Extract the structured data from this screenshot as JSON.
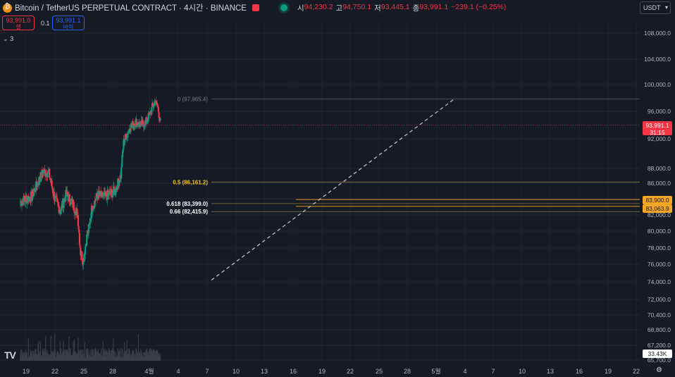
{
  "header": {
    "symbol": "Bitcoin / TetherUS PERPETUAL CONTRACT · 4시간 · BINANCE",
    "open_label": "시",
    "open": "94,230.2",
    "high_label": "고",
    "high": "94,750.1",
    "low_label": "저",
    "low": "93,445.1",
    "close_label": "종",
    "close": "93,991.1",
    "change": "−239.1 (−0.25%)",
    "currency": "USDT"
  },
  "trade": {
    "sell_price": "93,991.0",
    "sell_label": "셀",
    "spread": "0.1",
    "buy_price": "93,991.1",
    "buy_label": "바이",
    "indicators_count": "3"
  },
  "price_axis": {
    "ticks": [
      108000,
      104000,
      100000,
      96000,
      92000,
      88000,
      86000,
      84000,
      82000,
      80000,
      78000,
      76000,
      74000,
      72000,
      70400,
      68800,
      67200,
      65700
    ],
    "tick_labels": [
      "108,000.0",
      "104,000.0",
      "100,000.0",
      "96,000.0",
      "92,000.0",
      "88,000.0",
      "86,000.0",
      "84,000.0",
      "82,000.0",
      "80,000.0",
      "78,000.0",
      "76,000.0",
      "74,000.0",
      "72,000.0",
      "70,400.0",
      "68,800.0",
      "67,200.0",
      "65,700.0"
    ],
    "current_price": "93,991.1",
    "countdown": "31:15",
    "tag_83900": "83,900.0",
    "tag_83063": "83,063.9",
    "volume_tag": "33.43K"
  },
  "time_axis": {
    "labels": [
      "19",
      "22",
      "25",
      "28",
      "4월",
      "4",
      "7",
      "10",
      "13",
      "16",
      "19",
      "22",
      "25",
      "28",
      "5월",
      "4",
      "7",
      "10",
      "13",
      "16",
      "19",
      "22"
    ]
  },
  "fib": {
    "level0": "0 (97,865.4)",
    "level05": "0.5 (86,161.2)",
    "level0618": "0.618 (83,399.0)",
    "level066": "0.66 (82,415.9)"
  },
  "chart_data": {
    "type": "candlestick",
    "pair": "BTCUSDT",
    "interval": "4h",
    "ylim": [
      65700,
      110000
    ],
    "fib_levels": [
      {
        "ratio": 0,
        "price": 97865.4
      },
      {
        "ratio": 0.5,
        "price": 86161.2
      },
      {
        "ratio": 0.618,
        "price": 83399.0
      },
      {
        "ratio": 0.66,
        "price": 82415.9
      }
    ],
    "horizontal_lines": [
      83900.0,
      83063.9
    ],
    "approx_close_path": [
      {
        "date": "03-17",
        "close": 83600
      },
      {
        "date": "03-19",
        "close": 84000
      },
      {
        "date": "03-21",
        "close": 84300
      },
      {
        "date": "03-23",
        "close": 86000
      },
      {
        "date": "03-25",
        "close": 87600
      },
      {
        "date": "03-27",
        "close": 87300
      },
      {
        "date": "03-29",
        "close": 84000
      },
      {
        "date": "03-31",
        "close": 82500
      },
      {
        "date": "04-02",
        "close": 84600
      },
      {
        "date": "04-04",
        "close": 83500
      },
      {
        "date": "04-06",
        "close": 82000
      },
      {
        "date": "04-07",
        "close": 77500
      },
      {
        "date": "04-08",
        "close": 76500
      },
      {
        "date": "04-09",
        "close": 79000
      },
      {
        "date": "04-10",
        "close": 80500
      },
      {
        "date": "04-11",
        "close": 83000
      },
      {
        "date": "04-13",
        "close": 84500
      },
      {
        "date": "04-15",
        "close": 84200
      },
      {
        "date": "04-17",
        "close": 84600
      },
      {
        "date": "04-19",
        "close": 85000
      },
      {
        "date": "04-21",
        "close": 87000
      },
      {
        "date": "04-22",
        "close": 91500
      },
      {
        "date": "04-24",
        "close": 93500
      },
      {
        "date": "04-26",
        "close": 94500
      },
      {
        "date": "04-28",
        "close": 94000
      },
      {
        "date": "04-30",
        "close": 94500
      },
      {
        "date": "05-02",
        "close": 96500
      },
      {
        "date": "05-03",
        "close": 97500
      },
      {
        "date": "05-04",
        "close": 96500
      },
      {
        "date": "05-05",
        "close": 94000
      }
    ]
  }
}
